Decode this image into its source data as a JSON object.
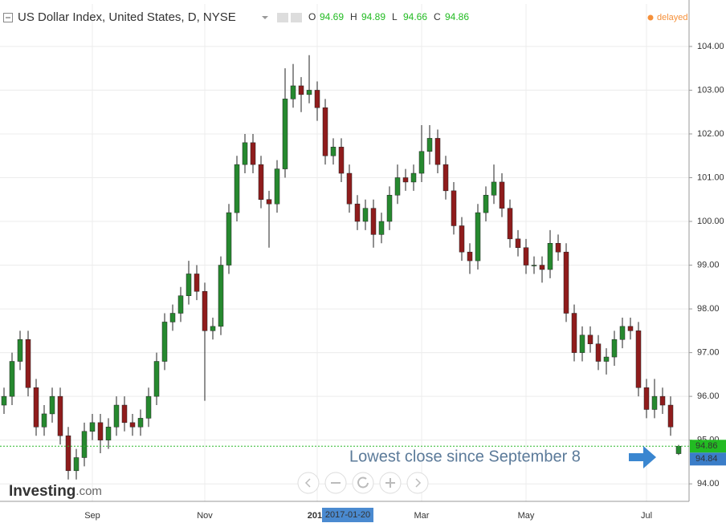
{
  "chart_data": {
    "type": "candlestick",
    "title": "US Dollar Index, United States, D, NYSE",
    "ohlc": [
      {
        "label": "O",
        "value": 94.69
      },
      {
        "label": "H",
        "value": 94.89
      },
      {
        "label": "L",
        "value": 94.66
      },
      {
        "label": "C",
        "value": 94.86
      }
    ],
    "status": "delayed",
    "annotation": "Lowest close since September 8",
    "highlight_label": "2017-01-20",
    "last_price": 94.86,
    "current_price": 94.84,
    "logo": "Investing",
    "logo_suffix": ".com",
    "up_color": "#26892f",
    "down_color": "#8f1c1c",
    "grid": true,
    "ylim": [
      93.6,
      104.42
    ],
    "yticks": [
      {
        "value": 94,
        "label": "94.00"
      },
      {
        "value": 95,
        "label": "95.00"
      },
      {
        "value": 96,
        "label": "96.00"
      },
      {
        "value": 97,
        "label": "97.00"
      },
      {
        "value": 98,
        "label": "98.00"
      },
      {
        "value": 99,
        "label": "99.00"
      },
      {
        "value": 100,
        "label": "100.00"
      },
      {
        "value": 101,
        "label": "101.00"
      },
      {
        "value": 102,
        "label": "102.00"
      },
      {
        "value": 103,
        "label": "103.00"
      },
      {
        "value": 104,
        "label": "104.00"
      }
    ],
    "categories": [
      null,
      null,
      null,
      null,
      null,
      null,
      null,
      null,
      null,
      null,
      null,
      "Sep",
      null,
      null,
      null,
      null,
      null,
      null,
      null,
      null,
      null,
      null,
      null,
      null,
      null,
      "Nov",
      null,
      null,
      null,
      null,
      null,
      null,
      null,
      null,
      null,
      null,
      null,
      null,
      null,
      "2017",
      null,
      null,
      null,
      null,
      null,
      null,
      null,
      null,
      null,
      null,
      null,
      null,
      "Mar",
      null,
      null,
      null,
      null,
      null,
      null,
      null,
      null,
      null,
      null,
      null,
      null,
      "May",
      null,
      null,
      null,
      null,
      null,
      null,
      null,
      null,
      null,
      null,
      null,
      null,
      null,
      null,
      "Jul",
      null,
      null,
      null,
      null
    ],
    "open": [
      95.8,
      96.0,
      96.8,
      97.3,
      96.2,
      95.3,
      95.6,
      96.0,
      95.1,
      94.3,
      94.6,
      95.2,
      95.4,
      95.0,
      95.3,
      95.8,
      95.4,
      95.3,
      95.5,
      96.0,
      96.8,
      97.7,
      97.9,
      98.3,
      98.8,
      98.4,
      97.5,
      97.6,
      99.0,
      100.2,
      101.3,
      101.8,
      101.3,
      100.5,
      100.4,
      101.2,
      102.8,
      103.1,
      102.9,
      103.0,
      102.6,
      101.5,
      101.7,
      101.1,
      100.4,
      100.0,
      100.3,
      99.7,
      100.0,
      100.6,
      101.0,
      100.9,
      101.1,
      101.6,
      101.9,
      101.3,
      100.7,
      99.9,
      99.3,
      99.1,
      100.2,
      100.6,
      100.9,
      100.3,
      99.6,
      99.4,
      99.0,
      99.0,
      98.9,
      99.5,
      99.3,
      97.9,
      97.0,
      97.4,
      97.2,
      96.8,
      96.9,
      97.3,
      97.6,
      97.5,
      96.2,
      95.7,
      96.0,
      95.8,
      94.69
    ],
    "high": [
      96.2,
      97.0,
      97.5,
      97.5,
      96.4,
      95.8,
      96.2,
      96.2,
      95.3,
      94.8,
      95.4,
      95.6,
      95.6,
      95.5,
      96.0,
      96.0,
      95.6,
      95.7,
      96.2,
      97.0,
      97.9,
      98.1,
      98.5,
      99.1,
      99.0,
      98.6,
      97.8,
      99.2,
      100.4,
      101.5,
      102.0,
      102.0,
      101.5,
      100.7,
      101.4,
      103.5,
      103.6,
      103.3,
      103.8,
      103.2,
      102.8,
      101.9,
      101.9,
      101.3,
      100.6,
      100.5,
      100.5,
      100.2,
      100.8,
      101.3,
      101.2,
      101.3,
      102.2,
      102.2,
      102.1,
      101.5,
      100.9,
      100.1,
      99.5,
      100.4,
      100.8,
      101.3,
      101.1,
      100.5,
      99.8,
      99.6,
      99.2,
      99.2,
      99.8,
      99.7,
      99.5,
      98.1,
      97.6,
      97.6,
      97.4,
      97.1,
      97.5,
      97.8,
      97.8,
      97.7,
      96.4,
      96.4,
      96.2,
      96.0,
      94.89
    ],
    "low": [
      95.6,
      95.8,
      96.6,
      96.0,
      95.1,
      95.1,
      95.4,
      94.9,
      94.1,
      94.1,
      94.4,
      95.0,
      94.7,
      94.8,
      95.1,
      95.2,
      95.1,
      95.1,
      95.3,
      95.8,
      96.6,
      97.5,
      97.7,
      98.1,
      98.2,
      95.9,
      97.3,
      97.4,
      98.8,
      100.0,
      101.1,
      101.1,
      100.3,
      99.4,
      100.2,
      101.0,
      102.6,
      102.5,
      102.7,
      102.3,
      101.3,
      101.3,
      100.9,
      100.2,
      99.8,
      99.8,
      99.4,
      99.5,
      99.8,
      100.4,
      100.7,
      100.7,
      100.9,
      101.3,
      101.1,
      100.5,
      99.7,
      99.1,
      98.8,
      98.9,
      100.0,
      100.4,
      100.1,
      99.4,
      99.2,
      98.8,
      98.8,
      98.6,
      98.7,
      99.1,
      97.7,
      96.8,
      96.8,
      97.0,
      96.6,
      96.5,
      96.7,
      97.1,
      97.3,
      96.0,
      95.5,
      95.5,
      95.6,
      95.1,
      94.66
    ],
    "close": [
      96.0,
      96.8,
      97.3,
      96.2,
      95.3,
      95.6,
      96.0,
      95.1,
      94.3,
      94.6,
      95.2,
      95.4,
      95.0,
      95.3,
      95.8,
      95.4,
      95.3,
      95.5,
      96.0,
      96.8,
      97.7,
      97.9,
      98.3,
      98.8,
      98.4,
      97.5,
      97.6,
      99.0,
      100.2,
      101.3,
      101.8,
      101.3,
      100.5,
      100.4,
      101.2,
      102.8,
      103.1,
      102.9,
      103.0,
      102.6,
      101.5,
      101.7,
      101.1,
      100.4,
      100.0,
      100.3,
      99.7,
      100.0,
      100.6,
      101.0,
      100.9,
      101.1,
      101.6,
      101.9,
      101.3,
      100.7,
      99.9,
      99.3,
      99.1,
      100.2,
      100.6,
      100.9,
      100.3,
      99.6,
      99.4,
      99.0,
      99.0,
      98.9,
      99.5,
      99.3,
      97.9,
      97.0,
      97.4,
      97.2,
      96.8,
      96.9,
      97.3,
      97.6,
      97.5,
      96.2,
      95.7,
      96.0,
      95.8,
      95.3,
      94.86
    ]
  }
}
